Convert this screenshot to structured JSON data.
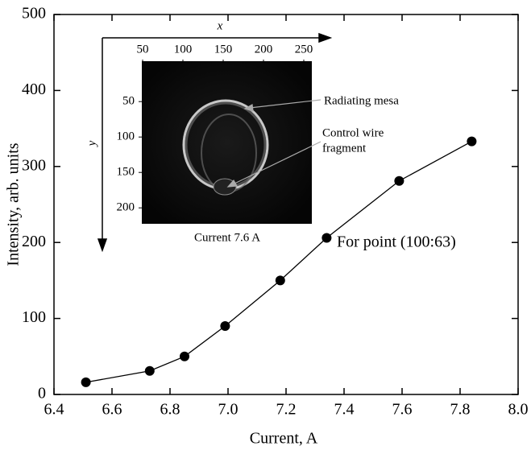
{
  "chart_data": {
    "type": "line",
    "x_label": "Current, A",
    "y_label": "Intensity, arb. units",
    "x": [
      6.51,
      6.73,
      6.85,
      6.99,
      7.18,
      7.34,
      7.59,
      7.84
    ],
    "values": [
      16,
      31,
      50,
      90,
      150,
      206,
      281,
      333
    ],
    "color": "#000000",
    "xlim": [
      6.4,
      8.0
    ],
    "ylim": [
      0,
      500
    ],
    "xticks": [
      6.4,
      6.6,
      6.8,
      {
        "value": 7,
        "label": "7.0"
      },
      7.2,
      7.4,
      7.6,
      7.8,
      {
        "value": 8,
        "label": "8.0"
      }
    ],
    "yticks": [
      0,
      100,
      200,
      300,
      400,
      500
    ],
    "annotation": "For point (100:63)",
    "inset": {
      "x_label": "x",
      "y_label": "y",
      "xlim": [
        0,
        283
      ],
      "ylim": [
        -40,
        260
      ],
      "xticks": [
        50,
        100,
        150,
        200,
        250
      ],
      "yticks": [
        50,
        100,
        150,
        200
      ],
      "caption": "Current 7.6 A",
      "labels": [
        "Radiating mesa",
        "Control wire",
        "fragment"
      ]
    }
  }
}
